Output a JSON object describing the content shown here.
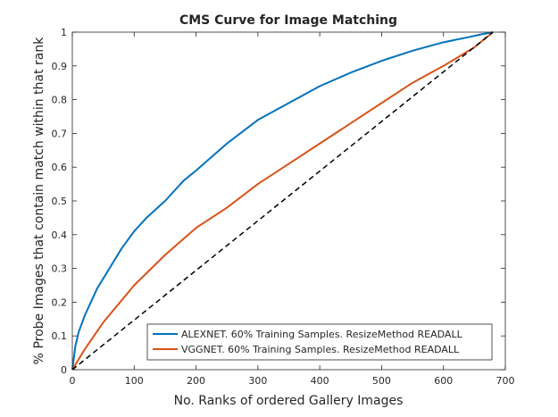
{
  "chart_data": {
    "type": "line",
    "title": "CMS Curve for Image Matching",
    "xlabel": "No. Ranks of ordered Gallery Images",
    "ylabel": "% Probe Images that contain match within that rank",
    "xlim": [
      0,
      700
    ],
    "ylim": [
      0,
      1
    ],
    "xticks": [
      0,
      100,
      200,
      300,
      400,
      500,
      600,
      700
    ],
    "yticks": [
      0,
      0.1,
      0.2,
      0.3,
      0.4,
      0.5,
      0.6,
      0.7,
      0.8,
      0.9,
      1
    ],
    "grid": false,
    "legend_position": "bottom-right",
    "series": [
      {
        "name": "ALEXNET. 60% Training Samples. ResizeMethod READALL",
        "color": "#0072BD",
        "style": "solid",
        "x": [
          0,
          5,
          10,
          20,
          30,
          40,
          50,
          60,
          80,
          100,
          120,
          150,
          180,
          200,
          250,
          300,
          350,
          400,
          450,
          500,
          550,
          600,
          640,
          660,
          680
        ],
        "y": [
          0,
          0.07,
          0.11,
          0.16,
          0.2,
          0.24,
          0.27,
          0.3,
          0.36,
          0.41,
          0.45,
          0.5,
          0.56,
          0.59,
          0.67,
          0.74,
          0.79,
          0.84,
          0.88,
          0.915,
          0.945,
          0.97,
          0.985,
          0.993,
          1.0
        ]
      },
      {
        "name": "VGGNET. 60% Training Samples. ResizeMethod READALL",
        "color": "#D95319",
        "style": "solid",
        "x": [
          0,
          10,
          20,
          50,
          100,
          150,
          200,
          250,
          300,
          350,
          400,
          450,
          500,
          550,
          600,
          650,
          680
        ],
        "y": [
          0,
          0.03,
          0.06,
          0.14,
          0.25,
          0.34,
          0.42,
          0.48,
          0.55,
          0.61,
          0.67,
          0.73,
          0.79,
          0.85,
          0.9,
          0.955,
          1.0
        ]
      },
      {
        "color": "#000000",
        "style": "dashed",
        "x": [
          0,
          680
        ],
        "y": [
          0,
          1.0
        ]
      }
    ]
  }
}
